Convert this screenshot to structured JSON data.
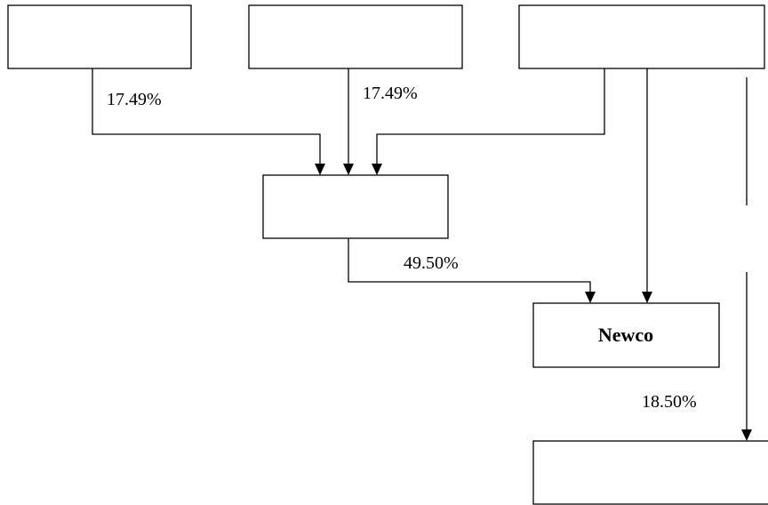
{
  "boxes": {
    "top_left": {
      "label": ""
    },
    "top_middle": {
      "label": ""
    },
    "top_right": {
      "label": ""
    },
    "middle": {
      "label": ""
    },
    "newco": {
      "label": "Newco"
    },
    "bottom_right": {
      "label": ""
    }
  },
  "edges": {
    "top_left_to_middle": {
      "label": "17.49%"
    },
    "top_middle_to_middle": {
      "label": "17.49%"
    },
    "top_right_to_middle": {
      "label": ""
    },
    "middle_to_newco": {
      "label": "49.50%"
    },
    "top_right_to_newco": {
      "label": ""
    },
    "top_right_to_bottom_right": {
      "label": "18.50%"
    }
  }
}
